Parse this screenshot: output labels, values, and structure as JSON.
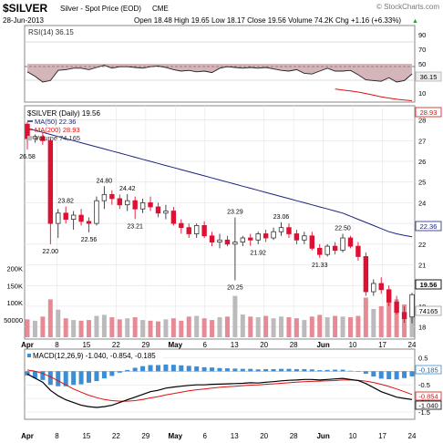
{
  "header": {
    "symbol": "$SILVER",
    "name": "Silver - Spot Price (EOD)",
    "exchange": "CME",
    "watermark": "© StockCharts.com",
    "date": "28-Jun-2013",
    "quote": "Open 18.48  High 19.65  Low 18.17  Close 19.56  Volume 74.2K  Chg +1.16 (+6.33%)",
    "up_arrow": "▲"
  },
  "rsi": {
    "label": "RSI(14) 36.15",
    "last_label": "36.15",
    "ticks": [
      "90",
      "70",
      "50",
      "30",
      "10"
    ],
    "last_value": 36.15
  },
  "price": {
    "legend": {
      "main": "$SILVER (Daily) 19.56",
      "ma50": "MA(50) 22.36",
      "ma200": "MA(200) 28.93",
      "volume": "Volume 74,165"
    },
    "tick_labels": [
      "28",
      "27",
      "26",
      "25",
      "24",
      "23",
      "22",
      "21",
      "20",
      "19",
      "18"
    ],
    "tags": {
      "ma200": "28.93",
      "ma50": "22.36",
      "close": "19.56",
      "volume": "74165"
    },
    "annotations": [
      {
        "text": "26.58",
        "idx": 0,
        "val": 26.58,
        "pos": "below"
      },
      {
        "text": "22.00",
        "idx": 3,
        "val": 22.0,
        "pos": "below"
      },
      {
        "text": "23.82",
        "idx": 5,
        "val": 23.82,
        "pos": "above"
      },
      {
        "text": "22.56",
        "idx": 8,
        "val": 22.56,
        "pos": "below"
      },
      {
        "text": "24.80",
        "idx": 10,
        "val": 24.8,
        "pos": "above"
      },
      {
        "text": "24.42",
        "idx": 13,
        "val": 24.42,
        "pos": "above"
      },
      {
        "text": "23.21",
        "idx": 14,
        "val": 23.21,
        "pos": "below"
      },
      {
        "text": "23.29",
        "idx": 27,
        "val": 23.29,
        "pos": "above"
      },
      {
        "text": "20.25",
        "idx": 27,
        "val": 20.25,
        "pos": "below"
      },
      {
        "text": "21.92",
        "idx": 30,
        "val": 21.92,
        "pos": "below"
      },
      {
        "text": "23.06",
        "idx": 33,
        "val": 23.06,
        "pos": "above"
      },
      {
        "text": "21.33",
        "idx": 38,
        "val": 21.33,
        "pos": "below"
      },
      {
        "text": "22.50",
        "idx": 41,
        "val": 22.5,
        "pos": "above"
      }
    ]
  },
  "volume_ticks": [
    "200K",
    "150K",
    "100K",
    "50000"
  ],
  "macd": {
    "label": "MACD(12,26,9) -1.040, -0.854, -0.185",
    "ticks": [
      "0.5",
      "0.0",
      "-0.5",
      "-1.0",
      "-1.5"
    ],
    "tags": {
      "hist": "-0.185",
      "signal": "-0.854",
      "macd": "-1.040"
    }
  },
  "x_labels": [
    "Apr",
    "8",
    "15",
    "22",
    "29",
    "May",
    "6",
    "13",
    "20",
    "28",
    "Jun",
    "10",
    "17",
    "24"
  ],
  "colors": {
    "up": "#ffffff",
    "down": "#dd1133",
    "ma50": "#1a237e",
    "ma200": "#dd1111",
    "volume_up": "#bbbbbb",
    "volume_down": "#e88a96",
    "macd_hist": "#3b8dd6"
  },
  "chart_data": [
    {
      "type": "line",
      "title": "RSI(14) 36.15",
      "ylim": [
        0,
        100
      ],
      "series": [
        {
          "name": "RSI(14)",
          "values": [
            39,
            33,
            25,
            27,
            41,
            42,
            44,
            44,
            42,
            45,
            48,
            44,
            46,
            46,
            45,
            44,
            46,
            47,
            45,
            42,
            40,
            41,
            39,
            40,
            38,
            44,
            46,
            45,
            44,
            45,
            44,
            45,
            43,
            41,
            40,
            42,
            37,
            36,
            40,
            44,
            40,
            40,
            41,
            35,
            28,
            27,
            26,
            31,
            25,
            27,
            36.15
          ]
        }
      ],
      "reference_lines": [
        30,
        50,
        70
      ]
    },
    {
      "type": "candlestick",
      "title": "$SILVER (Daily) 19.56",
      "ylim": [
        17.5,
        28.6
      ],
      "x_labels": [
        "Apr",
        "8",
        "15",
        "22",
        "29",
        "May",
        "6",
        "13",
        "20",
        "28",
        "Jun",
        "10",
        "17",
        "24"
      ],
      "ohlc": [
        [
          27.8,
          27.9,
          26.58,
          27.1
        ],
        [
          27.1,
          27.3,
          26.9,
          27.2
        ],
        [
          27.2,
          27.4,
          26.8,
          27.0
        ],
        [
          27.0,
          27.1,
          22.0,
          23.0
        ],
        [
          23.0,
          23.7,
          22.3,
          23.5
        ],
        [
          23.5,
          23.82,
          23.0,
          23.2
        ],
        [
          23.2,
          23.6,
          22.7,
          23.4
        ],
        [
          23.4,
          23.7,
          22.9,
          23.1
        ],
        [
          23.1,
          23.3,
          22.56,
          23.0
        ],
        [
          23.0,
          24.3,
          22.9,
          24.1
        ],
        [
          24.1,
          24.8,
          23.7,
          24.4
        ],
        [
          24.4,
          24.6,
          23.9,
          24.2
        ],
        [
          24.2,
          24.4,
          23.7,
          23.9
        ],
        [
          23.9,
          24.42,
          23.6,
          24.1
        ],
        [
          24.1,
          24.3,
          23.21,
          23.7
        ],
        [
          23.7,
          24.2,
          23.5,
          24.0
        ],
        [
          24.0,
          24.3,
          23.6,
          23.8
        ],
        [
          23.8,
          24.0,
          23.3,
          23.5
        ],
        [
          23.5,
          23.9,
          23.2,
          23.6
        ],
        [
          23.6,
          23.8,
          22.9,
          23.0
        ],
        [
          23.0,
          23.2,
          22.5,
          22.8
        ],
        [
          22.8,
          23.0,
          22.3,
          22.5
        ],
        [
          22.5,
          23.0,
          22.3,
          22.9
        ],
        [
          22.9,
          23.1,
          22.3,
          22.4
        ],
        [
          22.4,
          22.6,
          21.9,
          22.1
        ],
        [
          22.1,
          22.5,
          21.8,
          22.2
        ],
        [
          22.2,
          22.4,
          21.9,
          22.0
        ],
        [
          22.0,
          23.29,
          20.25,
          22.1
        ],
        [
          22.1,
          22.4,
          21.9,
          22.3
        ],
        [
          22.3,
          22.5,
          21.92,
          22.2
        ],
        [
          22.2,
          22.6,
          22.0,
          22.5
        ],
        [
          22.5,
          22.7,
          22.1,
          22.3
        ],
        [
          22.3,
          22.8,
          22.2,
          22.6
        ],
        [
          22.6,
          23.06,
          22.4,
          22.8
        ],
        [
          22.8,
          23.0,
          22.3,
          22.5
        ],
        [
          22.5,
          22.7,
          22.0,
          22.2
        ],
        [
          22.2,
          22.6,
          22.0,
          22.4
        ],
        [
          22.4,
          22.6,
          21.7,
          21.8
        ],
        [
          21.8,
          22.0,
          21.33,
          21.5
        ],
        [
          21.5,
          22.0,
          21.4,
          21.9
        ],
        [
          21.9,
          22.1,
          21.5,
          21.7
        ],
        [
          21.7,
          22.5,
          21.6,
          22.3
        ],
        [
          22.3,
          22.4,
          21.8,
          21.9
        ],
        [
          21.9,
          22.1,
          21.2,
          21.4
        ],
        [
          21.4,
          21.6,
          19.5,
          19.7
        ],
        [
          19.7,
          20.3,
          19.5,
          20.1
        ],
        [
          20.1,
          20.4,
          19.6,
          19.8
        ],
        [
          19.8,
          20.0,
          19.0,
          19.2
        ],
        [
          19.2,
          19.5,
          18.6,
          18.7
        ],
        [
          18.7,
          19.0,
          18.2,
          18.4
        ],
        [
          18.48,
          19.65,
          18.17,
          19.56
        ]
      ],
      "series": [
        {
          "name": "MA(50)",
          "values": [
            27.6,
            27.5,
            27.4,
            27.3,
            27.2,
            27.1,
            27.0,
            26.9,
            26.8,
            26.7,
            26.6,
            26.5,
            26.4,
            26.3,
            26.2,
            26.1,
            26.0,
            25.9,
            25.8,
            25.7,
            25.6,
            25.5,
            25.4,
            25.3,
            25.2,
            25.1,
            25.0,
            24.9,
            24.8,
            24.7,
            24.6,
            24.5,
            24.4,
            24.3,
            24.2,
            24.1,
            24.0,
            23.9,
            23.8,
            23.7,
            23.6,
            23.5,
            23.35,
            23.2,
            23.05,
            22.9,
            22.75,
            22.6,
            22.5,
            22.42,
            22.36
          ]
        },
        {
          "name": "MA(200)",
          "values": [
            null,
            null,
            null,
            null,
            null,
            null,
            null,
            null,
            null,
            null,
            null,
            null,
            null,
            null,
            null,
            null,
            null,
            null,
            null,
            null,
            null,
            null,
            null,
            null,
            null,
            null,
            null,
            null,
            null,
            null,
            null,
            null,
            null,
            null,
            null,
            null,
            null,
            null,
            null,
            null,
            29.5,
            29.45,
            29.4,
            29.35,
            29.28,
            29.2,
            29.12,
            29.06,
            29.0,
            28.96,
            28.93
          ]
        }
      ]
    },
    {
      "type": "bar",
      "title": "Volume 74,165",
      "ylim": [
        0,
        230000
      ],
      "series": [
        {
          "name": "Volume",
          "values": [
            52000,
            48000,
            60000,
            110000,
            80000,
            55000,
            50000,
            48000,
            50000,
            62000,
            65000,
            58000,
            52000,
            55000,
            58000,
            50000,
            48000,
            46000,
            52000,
            55000,
            48000,
            60000,
            62000,
            55000,
            50000,
            58000,
            60000,
            120000,
            66000,
            60000,
            58000,
            62000,
            55000,
            60000,
            58000,
            55000,
            50000,
            60000,
            65000,
            58000,
            62000,
            60000,
            58000,
            62000,
            115000,
            82000,
            90000,
            105000,
            110000,
            95000,
            74165
          ]
        }
      ]
    },
    {
      "type": "line",
      "title": "MACD(12,26,9) -1.040, -0.854, -0.185",
      "ylim": [
        -1.7,
        0.75
      ],
      "series": [
        {
          "name": "MACD",
          "values": [
            -0.1,
            -0.25,
            -0.4,
            -0.7,
            -0.9,
            -1.05,
            -1.15,
            -1.25,
            -1.3,
            -1.33,
            -1.3,
            -1.25,
            -1.15,
            -1.05,
            -0.95,
            -0.85,
            -0.75,
            -0.7,
            -0.62,
            -0.58,
            -0.55,
            -0.52,
            -0.5,
            -0.5,
            -0.48,
            -0.47,
            -0.46,
            -0.45,
            -0.44,
            -0.42,
            -0.43,
            -0.4,
            -0.38,
            -0.35,
            -0.33,
            -0.32,
            -0.3,
            -0.3,
            -0.32,
            -0.3,
            -0.28,
            -0.26,
            -0.3,
            -0.34,
            -0.45,
            -0.6,
            -0.75,
            -0.85,
            -0.95,
            -1.0,
            -1.04
          ]
        },
        {
          "name": "Signal",
          "values": [
            0.05,
            0.0,
            -0.08,
            -0.2,
            -0.35,
            -0.5,
            -0.65,
            -0.77,
            -0.88,
            -0.97,
            -1.04,
            -1.08,
            -1.1,
            -1.1,
            -1.08,
            -1.04,
            -0.98,
            -0.93,
            -0.87,
            -0.82,
            -0.77,
            -0.72,
            -0.68,
            -0.65,
            -0.62,
            -0.59,
            -0.57,
            -0.55,
            -0.53,
            -0.51,
            -0.5,
            -0.48,
            -0.46,
            -0.44,
            -0.42,
            -0.4,
            -0.38,
            -0.37,
            -0.36,
            -0.35,
            -0.34,
            -0.32,
            -0.32,
            -0.33,
            -0.36,
            -0.41,
            -0.48,
            -0.56,
            -0.65,
            -0.75,
            -0.854
          ]
        },
        {
          "name": "Histogram",
          "values": [
            -0.15,
            -0.25,
            -0.32,
            -0.5,
            -0.55,
            -0.55,
            -0.5,
            -0.48,
            -0.42,
            -0.36,
            -0.26,
            -0.17,
            -0.05,
            0.05,
            0.13,
            0.19,
            0.23,
            0.23,
            0.25,
            0.24,
            0.22,
            0.2,
            0.18,
            0.15,
            0.14,
            0.12,
            0.11,
            0.1,
            0.09,
            0.09,
            0.07,
            0.08,
            0.08,
            0.09,
            0.09,
            0.08,
            0.08,
            0.07,
            0.04,
            0.05,
            0.06,
            0.06,
            0.02,
            -0.01,
            -0.09,
            -0.19,
            -0.27,
            -0.29,
            -0.3,
            -0.25,
            -0.185
          ]
        }
      ]
    }
  ]
}
